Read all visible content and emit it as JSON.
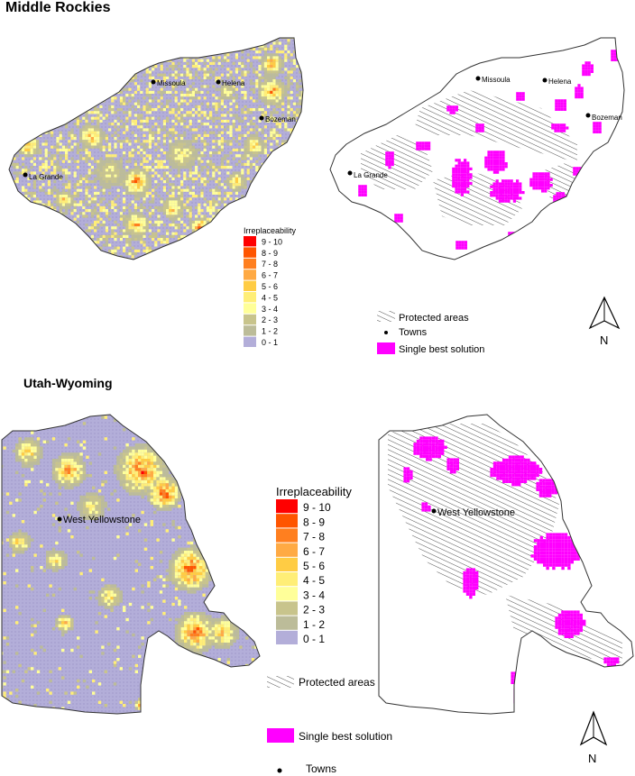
{
  "sections": [
    {
      "title": "Middle Rockies",
      "towns": [
        "Missoula",
        "Helena",
        "Bozeman",
        "La Grande"
      ],
      "legend": {
        "title": "Irreplaceability",
        "classes": [
          "9 - 10",
          "8 - 9",
          "7 - 8",
          "6 - 7",
          "5 - 6",
          "4 - 5",
          "3 - 4",
          "2 - 3",
          "1 - 2",
          "0 - 1"
        ],
        "colors": [
          "#ff0000",
          "#ff5500",
          "#ff7f1f",
          "#ffaa44",
          "#ffcc44",
          "#ffee77",
          "#ffff99",
          "#c8c48c",
          "#bcbc99",
          "#b3aed9"
        ]
      },
      "key": {
        "protected": "Protected areas",
        "towns": "Towns",
        "best": "Single best solution"
      },
      "north": "N"
    },
    {
      "title": "Utah-Wyoming",
      "towns": [
        "West Yellowstone"
      ],
      "legend": {
        "title": "Irreplaceability",
        "classes": [
          "9 - 10",
          "8 - 9",
          "7 - 8",
          "6 - 7",
          "5 - 6",
          "4 - 5",
          "3 - 4",
          "2 - 3",
          "1 - 2",
          "0 - 1"
        ],
        "colors": [
          "#ff0000",
          "#ff5500",
          "#ff7f1f",
          "#ffaa44",
          "#ffcc44",
          "#ffee77",
          "#ffff99",
          "#c8c48c",
          "#bcbc99",
          "#b3aed9"
        ]
      },
      "key": {
        "protected": "Protected areas",
        "best": "Single best solution",
        "towns": "Towns"
      },
      "north": "N"
    }
  ],
  "colors": {
    "base": "#b3aed9",
    "best_solution": "#ff00ff"
  }
}
